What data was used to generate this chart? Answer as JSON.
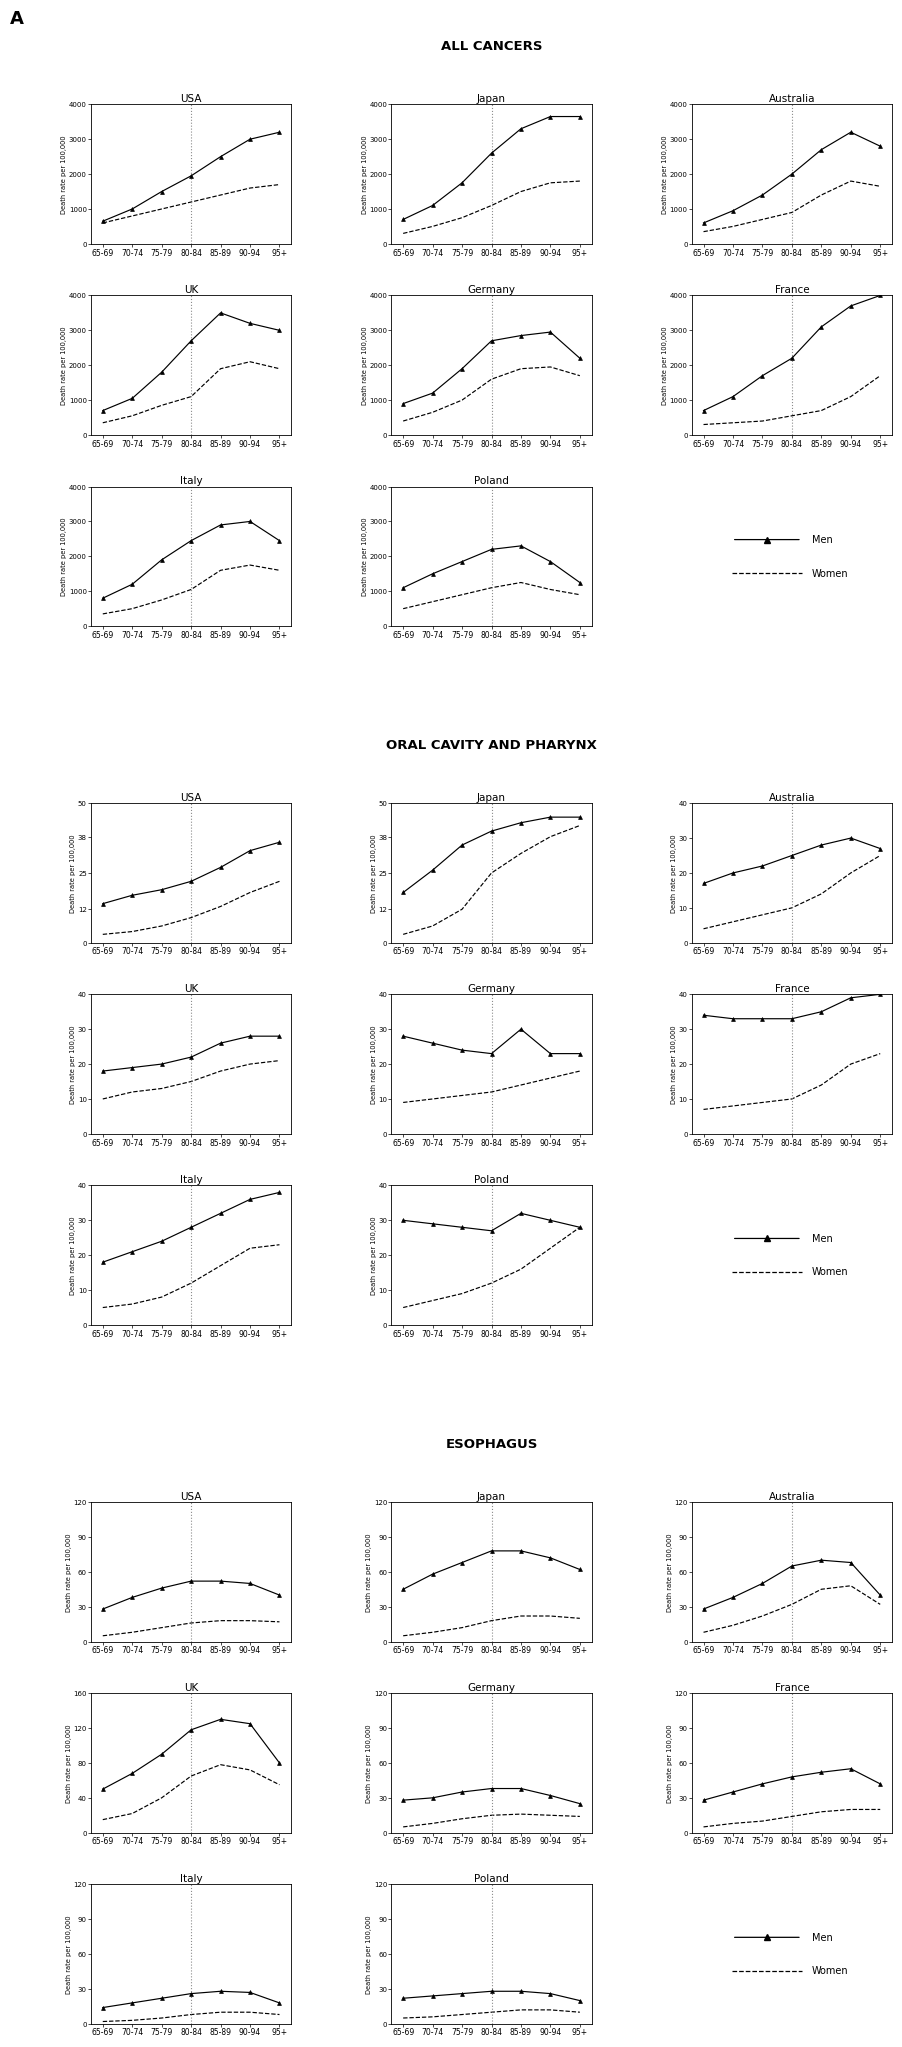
{
  "age_groups": [
    "65-69",
    "70-74",
    "75-79",
    "80-84",
    "85-89",
    "90-94",
    "95+"
  ],
  "all_cancers": {
    "USA": {
      "men": [
        650,
        1000,
        1500,
        1950,
        2500,
        3000,
        3200
      ],
      "women": [
        600,
        800,
        1000,
        1200,
        1400,
        1600,
        1700
      ],
      "ylim": [
        0,
        4000
      ]
    },
    "Japan": {
      "men": [
        700,
        1100,
        1750,
        2600,
        3300,
        3650,
        3650
      ],
      "women": [
        300,
        500,
        750,
        1100,
        1500,
        1750,
        1800
      ],
      "ylim": [
        0,
        4000
      ]
    },
    "Australia": {
      "men": [
        600,
        950,
        1400,
        2000,
        2700,
        3200,
        2800
      ],
      "women": [
        350,
        500,
        700,
        900,
        1400,
        1800,
        1650
      ],
      "ylim": [
        0,
        4000
      ]
    },
    "UK": {
      "men": [
        700,
        1050,
        1800,
        2700,
        3500,
        3200,
        3000
      ],
      "women": [
        350,
        550,
        850,
        1100,
        1900,
        2100,
        1900
      ],
      "ylim": [
        0,
        4000
      ]
    },
    "Germany": {
      "men": [
        900,
        1200,
        1900,
        2700,
        2850,
        2950,
        2200
      ],
      "women": [
        400,
        650,
        1000,
        1600,
        1900,
        1950,
        1700
      ],
      "ylim": [
        0,
        4000
      ]
    },
    "France": {
      "men": [
        700,
        1100,
        1700,
        2200,
        3100,
        3700,
        4000
      ],
      "women": [
        300,
        350,
        400,
        550,
        700,
        1100,
        1700
      ],
      "ylim": [
        0,
        4000
      ]
    },
    "Italy": {
      "men": [
        800,
        1200,
        1900,
        2450,
        2900,
        3000,
        2450
      ],
      "women": [
        350,
        500,
        750,
        1050,
        1600,
        1750,
        1600
      ],
      "ylim": [
        0,
        4000
      ]
    },
    "Poland": {
      "men": [
        1100,
        1500,
        1850,
        2200,
        2300,
        1850,
        1250
      ],
      "women": [
        500,
        700,
        900,
        1100,
        1250,
        1050,
        900
      ],
      "ylim": [
        0,
        4000
      ]
    }
  },
  "oral_cavity": {
    "USA": {
      "men": [
        14,
        17,
        19,
        22,
        27,
        33,
        36
      ],
      "women": [
        3,
        4,
        6,
        9,
        13,
        18,
        22
      ],
      "ylim": [
        0,
        50
      ]
    },
    "Japan": {
      "men": [
        18,
        26,
        35,
        40,
        43,
        45,
        45
      ],
      "women": [
        3,
        6,
        12,
        25,
        32,
        38,
        42
      ],
      "ylim": [
        0,
        50
      ]
    },
    "Australia": {
      "men": [
        17,
        20,
        22,
        25,
        28,
        30,
        27
      ],
      "women": [
        4,
        6,
        8,
        10,
        14,
        20,
        25
      ],
      "ylim": [
        0,
        40
      ]
    },
    "UK": {
      "men": [
        18,
        19,
        20,
        22,
        26,
        28,
        28
      ],
      "women": [
        10,
        12,
        13,
        15,
        18,
        20,
        21
      ],
      "ylim": [
        0,
        40
      ]
    },
    "Germany": {
      "men": [
        28,
        26,
        24,
        23,
        30,
        23,
        23
      ],
      "women": [
        9,
        10,
        11,
        12,
        14,
        16,
        18
      ],
      "ylim": [
        0,
        40
      ]
    },
    "France": {
      "men": [
        34,
        33,
        33,
        33,
        35,
        39,
        40
      ],
      "women": [
        7,
        8,
        9,
        10,
        14,
        20,
        23
      ],
      "ylim": [
        0,
        40
      ]
    },
    "Italy": {
      "men": [
        18,
        21,
        24,
        28,
        32,
        36,
        38
      ],
      "women": [
        5,
        6,
        8,
        12,
        17,
        22,
        23
      ],
      "ylim": [
        0,
        40
      ]
    },
    "Poland": {
      "men": [
        30,
        29,
        28,
        27,
        32,
        30,
        28
      ],
      "women": [
        5,
        7,
        9,
        12,
        16,
        22,
        28
      ],
      "ylim": [
        0,
        40
      ]
    }
  },
  "esophagus": {
    "USA": {
      "men": [
        28,
        38,
        46,
        52,
        52,
        50,
        40
      ],
      "women": [
        5,
        8,
        12,
        16,
        18,
        18,
        17
      ],
      "ylim": [
        0,
        120
      ]
    },
    "Japan": {
      "men": [
        45,
        58,
        68,
        78,
        78,
        72,
        62
      ],
      "women": [
        5,
        8,
        12,
        18,
        22,
        22,
        20
      ],
      "ylim": [
        0,
        120
      ]
    },
    "Australia": {
      "men": [
        28,
        38,
        50,
        65,
        70,
        68,
        40
      ],
      "women": [
        8,
        14,
        22,
        32,
        45,
        48,
        32
      ],
      "ylim": [
        0,
        120
      ]
    },
    "UK": {
      "men": [
        50,
        68,
        90,
        118,
        130,
        125,
        80
      ],
      "women": [
        15,
        22,
        40,
        65,
        78,
        72,
        55
      ],
      "ylim": [
        0,
        160
      ]
    },
    "Germany": {
      "men": [
        28,
        30,
        35,
        38,
        38,
        32,
        25
      ],
      "women": [
        5,
        8,
        12,
        15,
        16,
        15,
        14
      ],
      "ylim": [
        0,
        120
      ]
    },
    "France": {
      "men": [
        28,
        35,
        42,
        48,
        52,
        55,
        42
      ],
      "women": [
        5,
        8,
        10,
        14,
        18,
        20,
        20
      ],
      "ylim": [
        0,
        120
      ]
    },
    "Italy": {
      "men": [
        14,
        18,
        22,
        26,
        28,
        27,
        18
      ],
      "women": [
        2,
        3,
        5,
        8,
        10,
        10,
        8
      ],
      "ylim": [
        0,
        120
      ]
    },
    "Poland": {
      "men": [
        22,
        24,
        26,
        28,
        28,
        26,
        20
      ],
      "women": [
        5,
        6,
        8,
        10,
        12,
        12,
        10
      ],
      "ylim": [
        0,
        120
      ]
    }
  }
}
